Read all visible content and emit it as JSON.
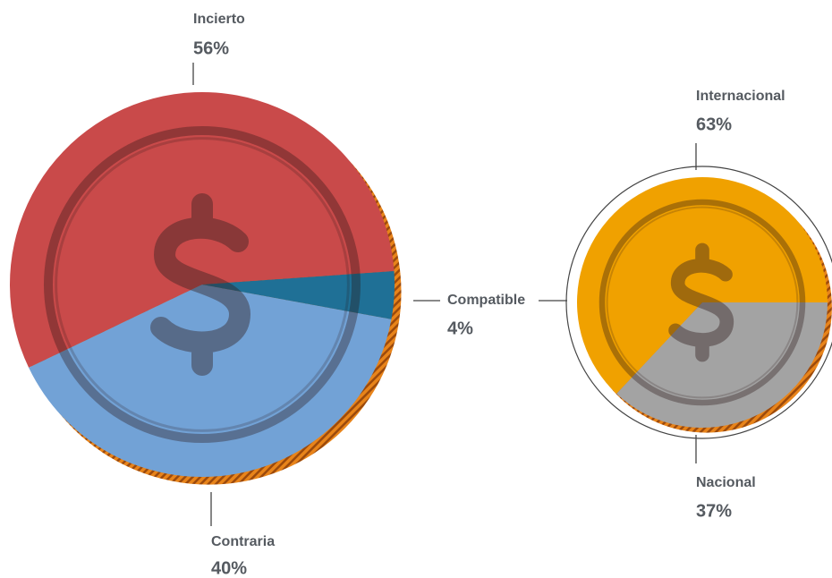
{
  "chart_data": [
    {
      "type": "pie",
      "categories": [
        "Incierto",
        "Contraria",
        "Compatible"
      ],
      "values": [
        56,
        40,
        4
      ],
      "value_labels": [
        "56%",
        "40%",
        "4%"
      ],
      "colors": [
        "#c94a4a",
        "#72a2d6",
        "#1f7096"
      ]
    },
    {
      "type": "pie",
      "categories": [
        "Internacional",
        "Nacional"
      ],
      "values": [
        63,
        37
      ],
      "value_labels": [
        "63%",
        "37%"
      ],
      "colors": [
        "#f0a100",
        "#a3a3a3"
      ]
    }
  ]
}
